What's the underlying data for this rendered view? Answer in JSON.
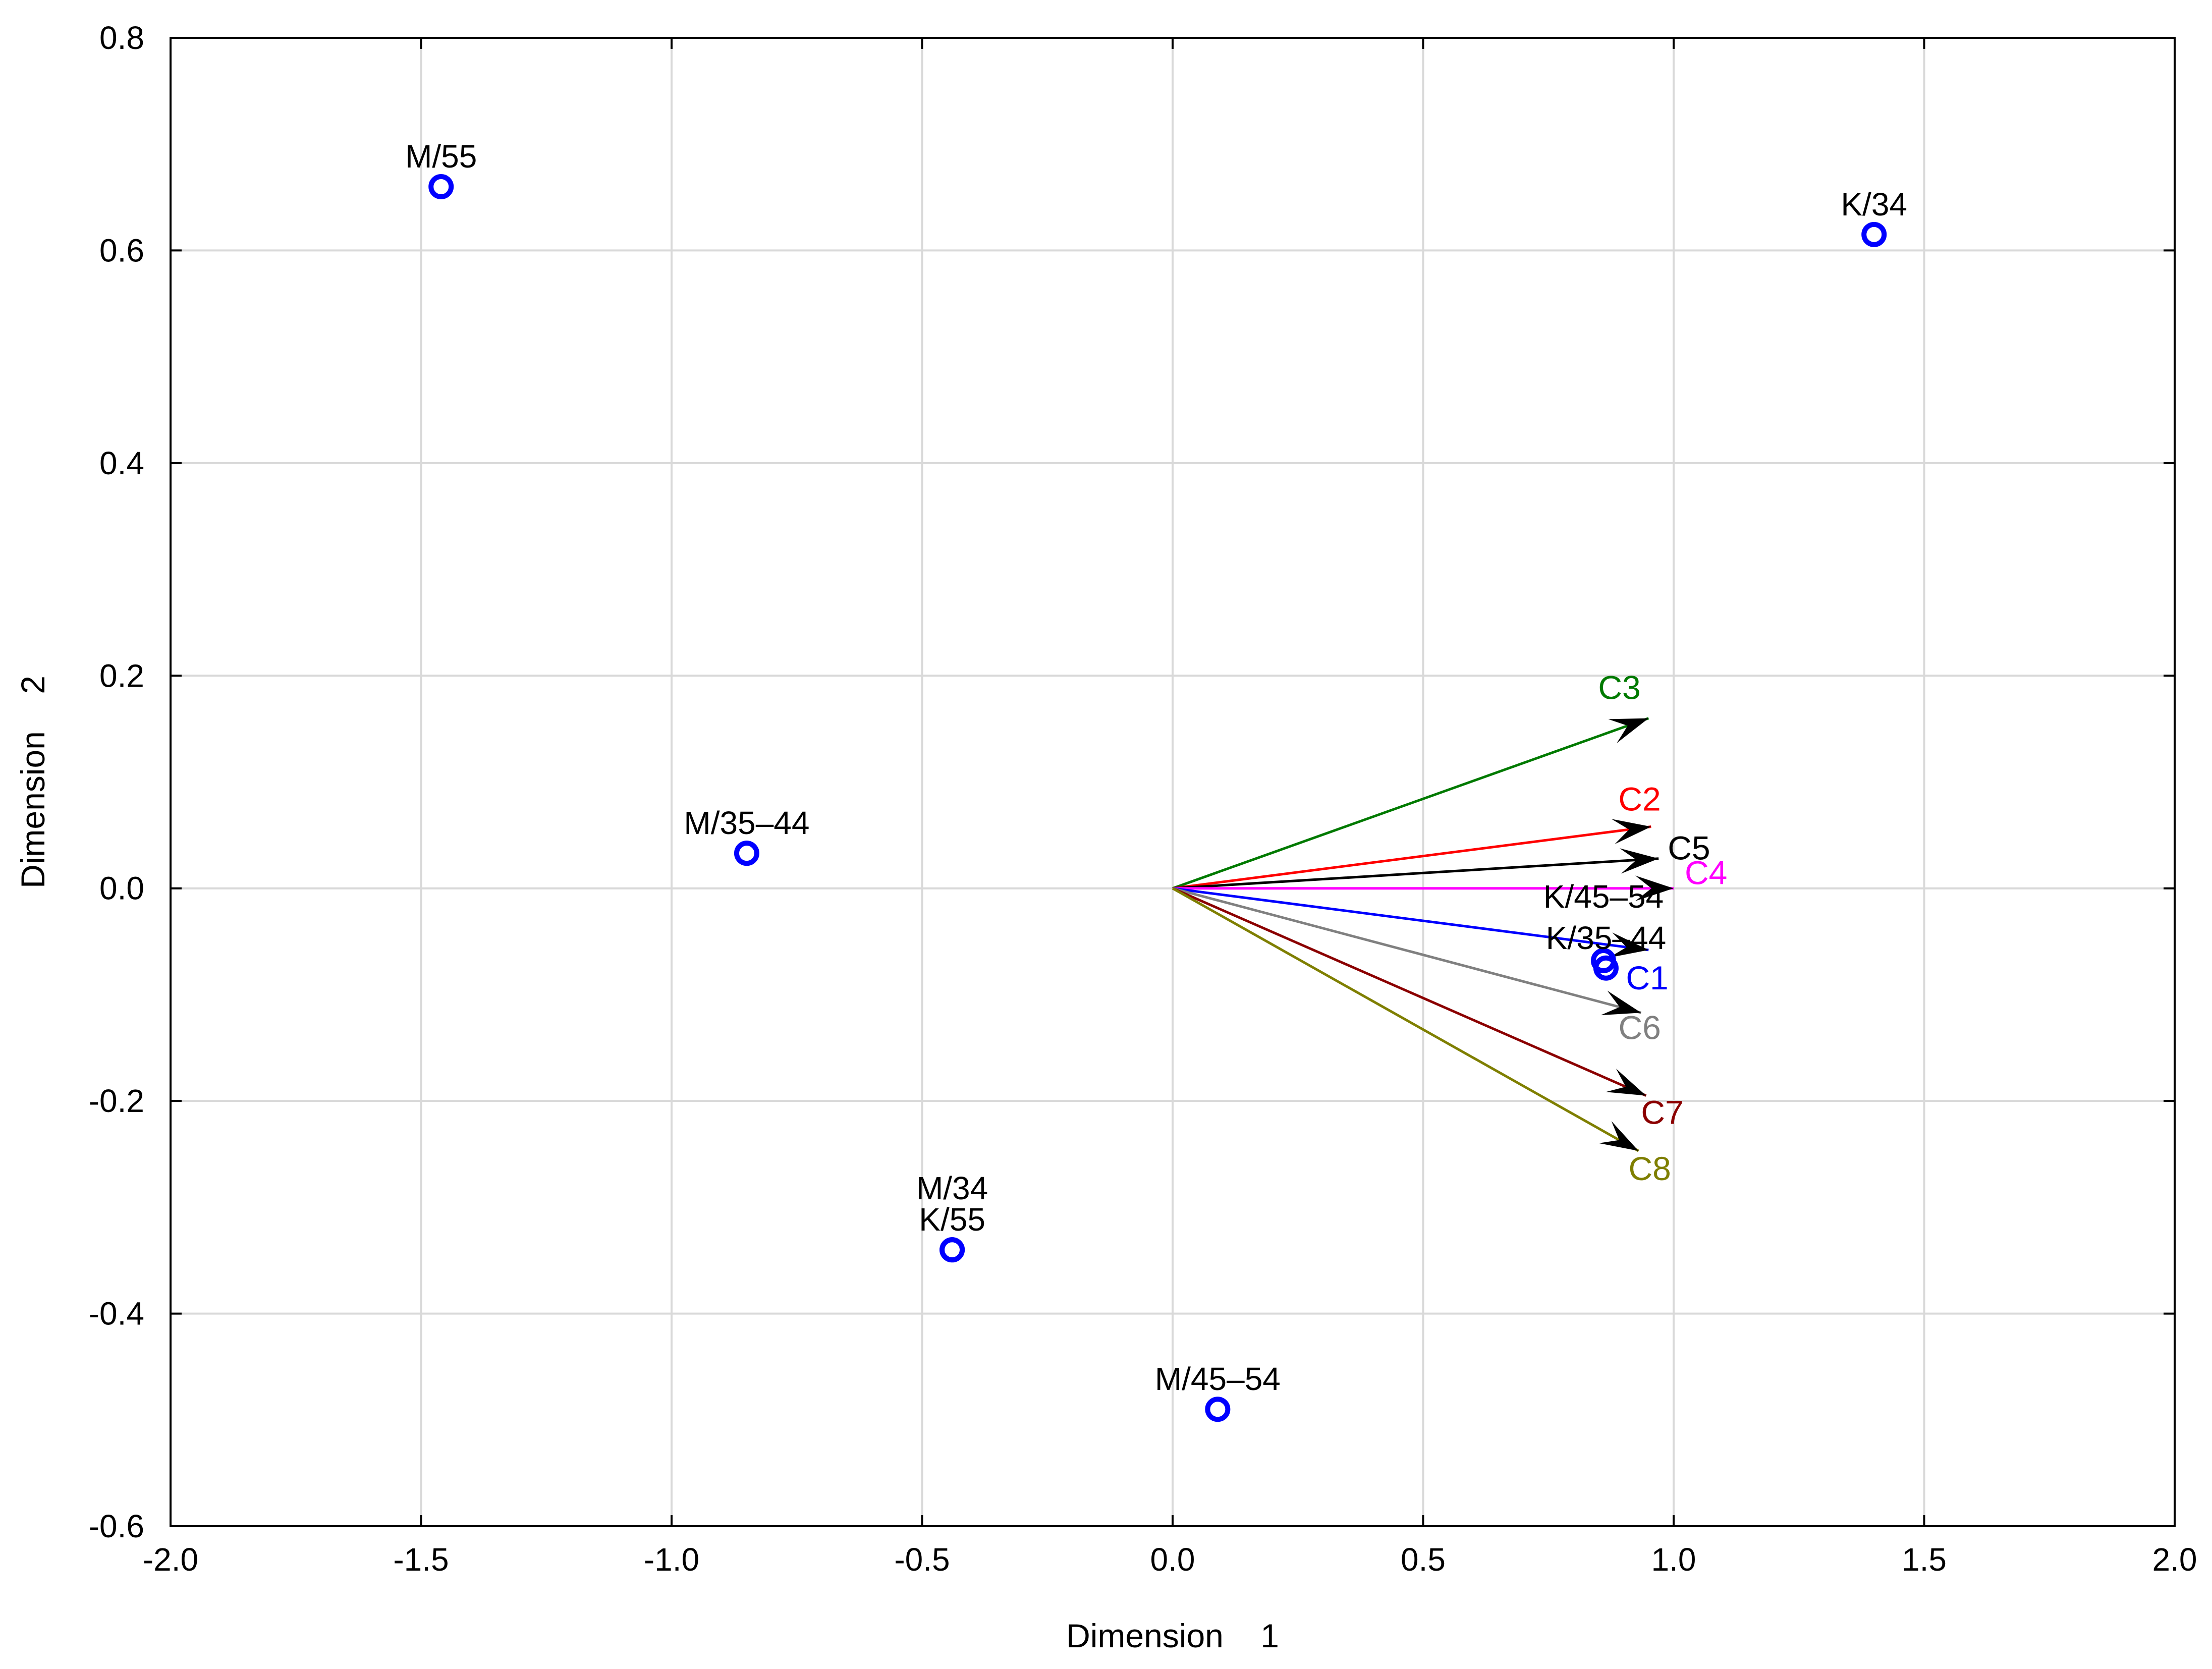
{
  "chart_data": {
    "type": "scatter",
    "title": "",
    "xlabel": "Dimension    1",
    "ylabel": "Dimension    2",
    "xlim": [
      -2.0,
      2.0
    ],
    "ylim": [
      -0.6,
      0.8
    ],
    "xticks": [
      -2.0,
      -1.5,
      -1.0,
      -0.5,
      0.0,
      0.5,
      1.0,
      1.5,
      2.0
    ],
    "xtick_labels": [
      "-2.0",
      "-1.5",
      "-1.0",
      "-0.5",
      "0.0",
      "0.5",
      "1.0",
      "1.5",
      "2.0"
    ],
    "yticks": [
      0.8,
      0.6,
      0.4,
      0.2,
      0.0,
      -0.2,
      -0.4,
      -0.6
    ],
    "ytick_labels": [
      "0.8",
      "0.6",
      "0.4",
      "0.2",
      "0.0",
      "-0.2",
      "-0.4",
      "-0.6"
    ],
    "grid": true,
    "point_color": "#0000ff",
    "points": [
      {
        "label": "M/55",
        "x": -1.46,
        "y": 0.66
      },
      {
        "label": "K/34",
        "x": 1.4,
        "y": 0.615
      },
      {
        "label": "M/35–44",
        "x": -0.85,
        "y": 0.033
      },
      {
        "label": "K/45–54",
        "x": 0.86,
        "y": -0.068
      },
      {
        "label": "K/35–44",
        "x": 0.865,
        "y": -0.075
      },
      {
        "label": "M/34",
        "x": -0.44,
        "y": -0.34
      },
      {
        "label": "K/55",
        "x": -0.44,
        "y": -0.34
      },
      {
        "label": "M/45–54",
        "x": 0.09,
        "y": -0.49
      }
    ],
    "vectors": [
      {
        "label": "C3",
        "x": 0.95,
        "y": 0.16,
        "color": "#007a00"
      },
      {
        "label": "C2",
        "x": 0.955,
        "y": 0.058,
        "color": "#ff0000"
      },
      {
        "label": "C5",
        "x": 0.97,
        "y": 0.028,
        "color": "#000000"
      },
      {
        "label": "C4",
        "x": 1.0,
        "y": 0.0,
        "color": "#ff00ff"
      },
      {
        "label": "C1",
        "x": 0.95,
        "y": -0.058,
        "color": "#0000ff"
      },
      {
        "label": "C6",
        "x": 0.935,
        "y": -0.117,
        "color": "#808080"
      },
      {
        "label": "C7",
        "x": 0.945,
        "y": -0.195,
        "color": "#8b0000"
      },
      {
        "label": "C8",
        "x": 0.93,
        "y": -0.247,
        "color": "#7f7f00"
      }
    ]
  }
}
